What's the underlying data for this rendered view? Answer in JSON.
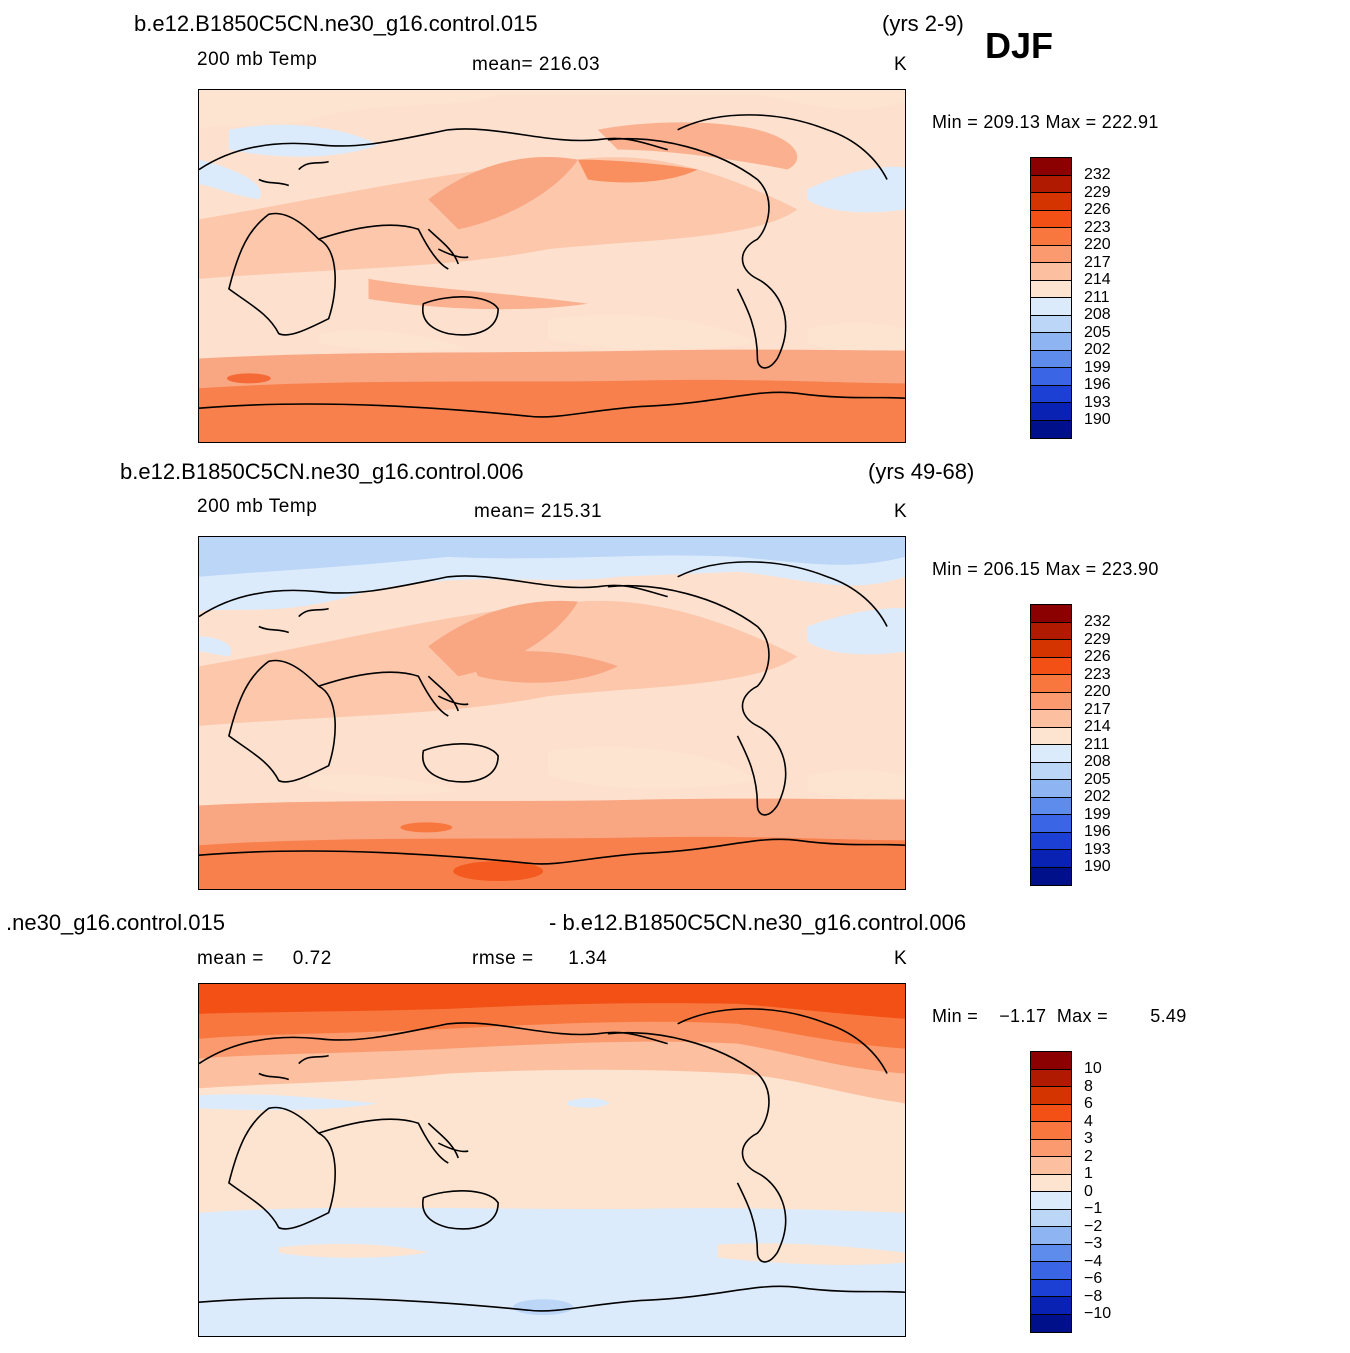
{
  "season": "DJF",
  "panels": [
    {
      "run_title": "b.e12.B1850C5CN.ne30_g16.control.015",
      "years": "(yrs 2-9)",
      "variable": "200 mb Temp",
      "stat_text": "mean=  216.03",
      "units": "K",
      "min_max": "Min =  209.13  Max  =  222.91",
      "colorbar_labels": [
        "232",
        "229",
        "226",
        "223",
        "220",
        "217",
        "214",
        "211",
        "208",
        "205",
        "202",
        "199",
        "196",
        "193",
        "190"
      ]
    },
    {
      "run_title": "b.e12.B1850C5CN.ne30_g16.control.006",
      "years": "(yrs 49-68)",
      "variable": "200 mb Temp",
      "stat_text": "mean=  215.31",
      "units": "K",
      "min_max": "Min =  206.15  Max  =  223.90",
      "colorbar_labels": [
        "232",
        "229",
        "226",
        "223",
        "220",
        "217",
        "214",
        "211",
        "208",
        "205",
        "202",
        "199",
        "196",
        "193",
        "190"
      ]
    },
    {
      "run_title_left": ".ne30_g16.control.015",
      "run_title_right": "- b.e12.B1850C5CN.ne30_g16.control.006",
      "mean_text": "mean =     0.72",
      "rmse_text": "rmse =      1.34",
      "units": "K",
      "min_max": "Min =    −1.17  Max =        5.49",
      "colorbar_labels": [
        "10",
        "8",
        "6",
        "4",
        "3",
        "2",
        "1",
        "0",
        "−1",
        "−2",
        "−3",
        "−4",
        "−6",
        "−8",
        "−10"
      ]
    }
  ],
  "colorbar_colors": [
    "#8b0000",
    "#b01a00",
    "#d43500",
    "#f25014",
    "#f8773e",
    "#fa9a6e",
    "#fcbfa0",
    "#fde4d0",
    "#dcebfb",
    "#bcd6f7",
    "#8eb5f2",
    "#5e8cec",
    "#3a66e6",
    "#1c40d4",
    "#0a22b4",
    "#00108a"
  ]
}
